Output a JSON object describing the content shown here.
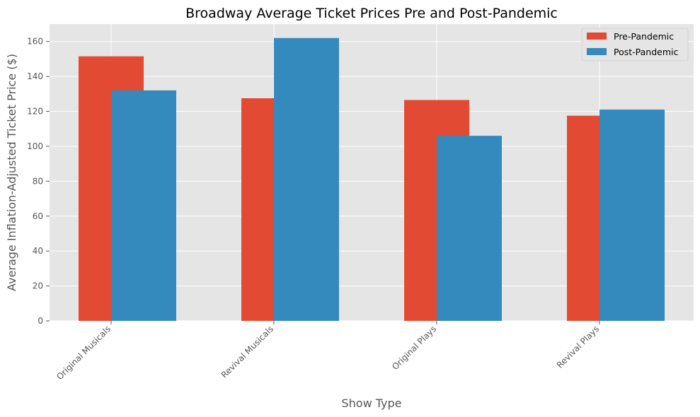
{
  "chart_data": {
    "type": "bar",
    "title": "Broadway Average Ticket Prices Pre and Post-Pandemic",
    "xlabel": "Show Type",
    "ylabel": "Average Inflation-Adjusted Ticket Price ($)",
    "categories": [
      "Original Musicals",
      "Revival Musicals",
      "Original Plays",
      "Revival Plays"
    ],
    "series": [
      {
        "name": "Pre-Pandemic",
        "values": [
          151.5,
          127.5,
          126.5,
          117.5
        ],
        "color": "#E24A33"
      },
      {
        "name": "Post-Pandemic",
        "values": [
          132.0,
          162.0,
          106.0,
          121.0
        ],
        "color": "#348ABD"
      }
    ],
    "ylim": [
      0,
      170
    ],
    "yticks": [
      0,
      20,
      40,
      60,
      80,
      100,
      120,
      140,
      160
    ],
    "grid": true,
    "legend_position": "top-right",
    "background_color": "#E5E5E5",
    "grid_color": "#FFFFFF"
  }
}
